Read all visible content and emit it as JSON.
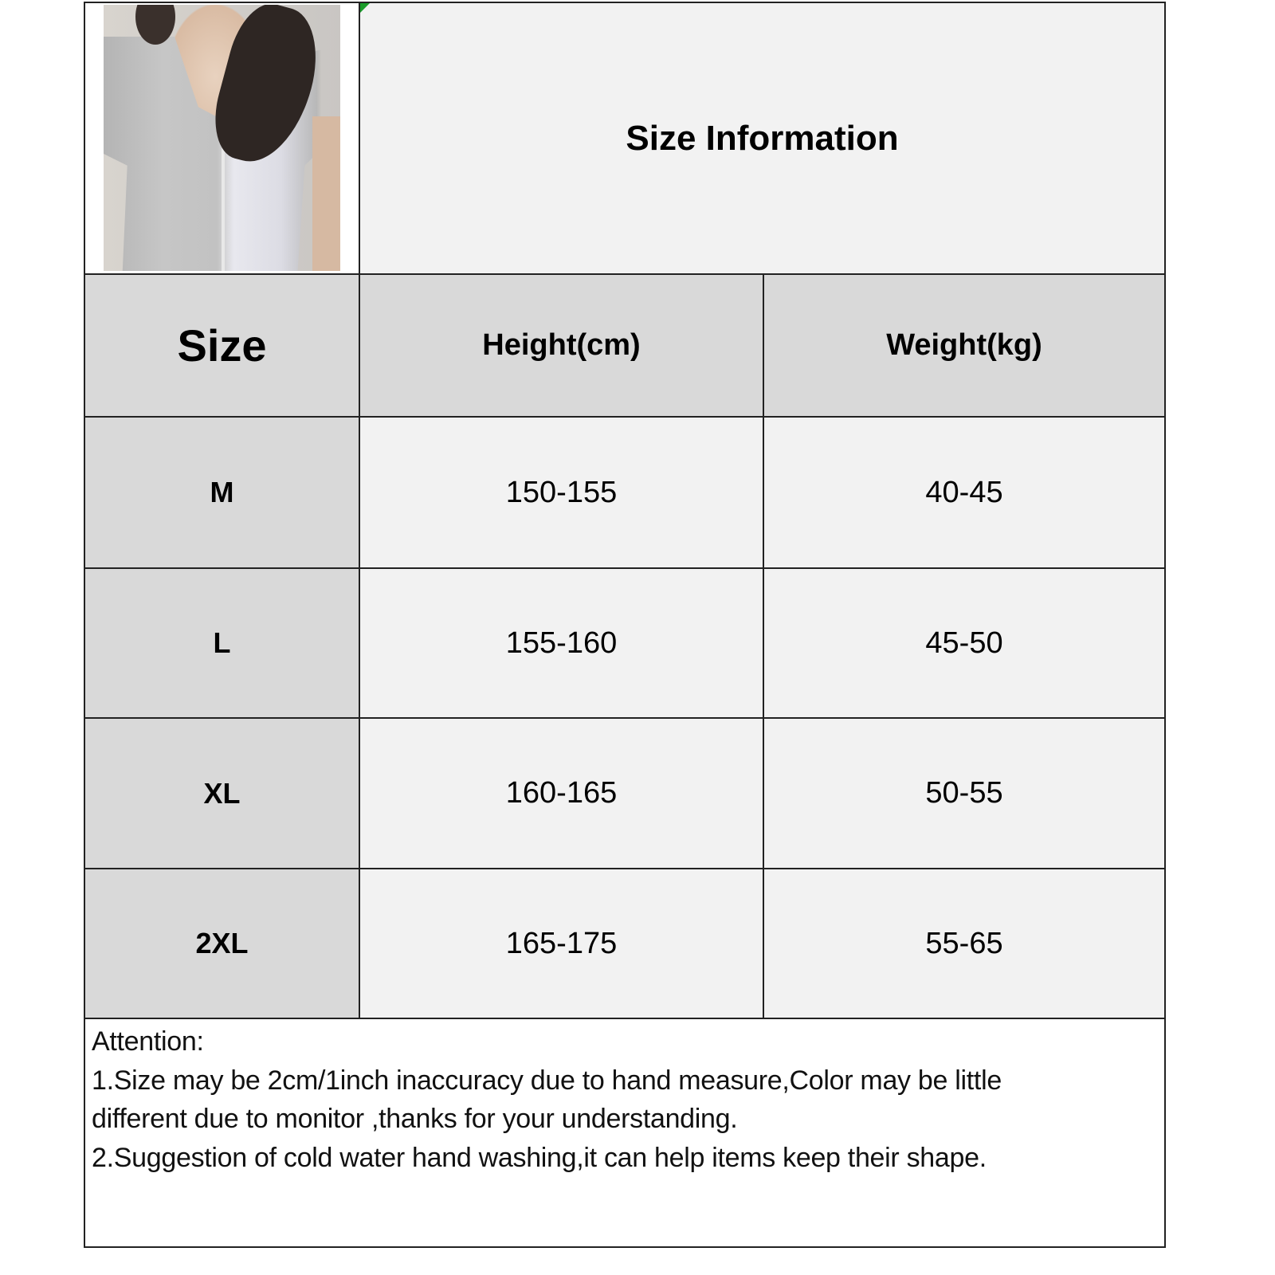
{
  "title": "Size Information",
  "product_image": {
    "alt": "model wearing grey and white short-sleeve button cardigan top"
  },
  "columns": [
    "Size",
    "Height(cm)",
    "Weight(kg)"
  ],
  "rows": [
    {
      "size": "M",
      "height": "150-155",
      "weight": "40-45"
    },
    {
      "size": "L",
      "height": "155-160",
      "weight": "45-50"
    },
    {
      "size": "XL",
      "height": "160-165",
      "weight": "50-55"
    },
    {
      "size": "2XL",
      "height": "165-175",
      "weight": "55-65"
    }
  ],
  "notes": {
    "heading": "Attention:",
    "lines": [
      "1.Size may be 2cm/1inch inaccuracy due to hand measure,Color may be little",
      "different due to monitor ,thanks for your understanding.",
      "2.Suggestion of cold water hand washing,it can help items keep their shape."
    ]
  },
  "colors": {
    "header_fill": "#d9d9d9",
    "cell_fill": "#f2f2f2",
    "border": "#222222"
  }
}
